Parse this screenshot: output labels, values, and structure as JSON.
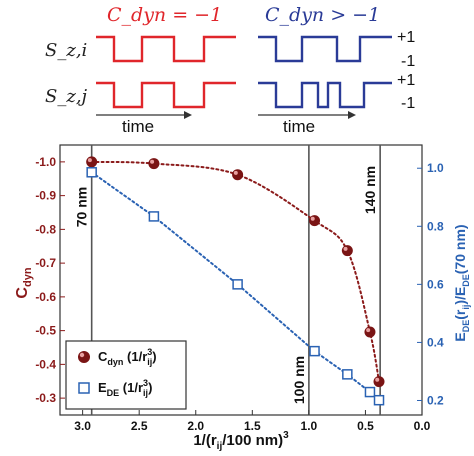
{
  "schematic": {
    "left_label": "C_dyn = −1",
    "right_label": "C_dyn > −1",
    "row1_label": "S_z,i",
    "row2_label": "S_z,j",
    "levels": [
      "+1",
      "-1",
      "+1",
      "-1"
    ],
    "time_label": "time",
    "colors": {
      "left": "#e0262b",
      "right": "#2a3b97"
    }
  },
  "chart_data": {
    "type": "scatter",
    "xlabel": "1/(r_ij/100 nm)^3",
    "ylabel_left": "C_dyn",
    "ylabel_right": "E_DE(r_ij)/E_DE(70 nm)",
    "xlim": [
      3.2,
      0.0
    ],
    "ylim_left": [
      -1.05,
      -0.25
    ],
    "ylim_right": [
      0.15,
      1.08
    ],
    "x_ticks": [
      "3.0",
      "2.5",
      "2.0",
      "1.5",
      "1.0",
      "0.5",
      "0.0"
    ],
    "y_ticks_left": [
      "-1.0",
      "-0.9",
      "-0.8",
      "-0.7",
      "-0.6",
      "-0.5",
      "-0.4",
      "-0.3"
    ],
    "y_ticks_right": [
      "1.0",
      "0.8",
      "0.6",
      "0.4",
      "0.2"
    ],
    "series": [
      {
        "name": "C_dyn (1/r_ij^3)",
        "axis": "left",
        "marker": "sphere",
        "color": "#8b1a1a",
        "x": [
          2.92,
          2.37,
          1.63,
          0.95,
          0.66,
          0.46,
          0.38
        ],
        "y": [
          -1.0,
          -0.995,
          -0.962,
          -0.826,
          -0.737,
          -0.496,
          -0.349
        ]
      },
      {
        "name": "E_DE (1/r_ij^3)",
        "axis": "right",
        "marker": "open-square",
        "color": "#2a62b3",
        "x": [
          2.92,
          2.37,
          1.63,
          0.95,
          0.66,
          0.46,
          0.38
        ],
        "y": [
          0.986,
          0.834,
          0.6,
          0.37,
          0.29,
          0.229,
          0.201
        ]
      }
    ],
    "vertical_lines": [
      {
        "x": 2.92,
        "label": "70 nm"
      },
      {
        "x": 1.0,
        "label": "100 nm"
      },
      {
        "x": 0.37,
        "label": "140 nm"
      }
    ],
    "legend_position": "bottom-left",
    "grid": false
  }
}
